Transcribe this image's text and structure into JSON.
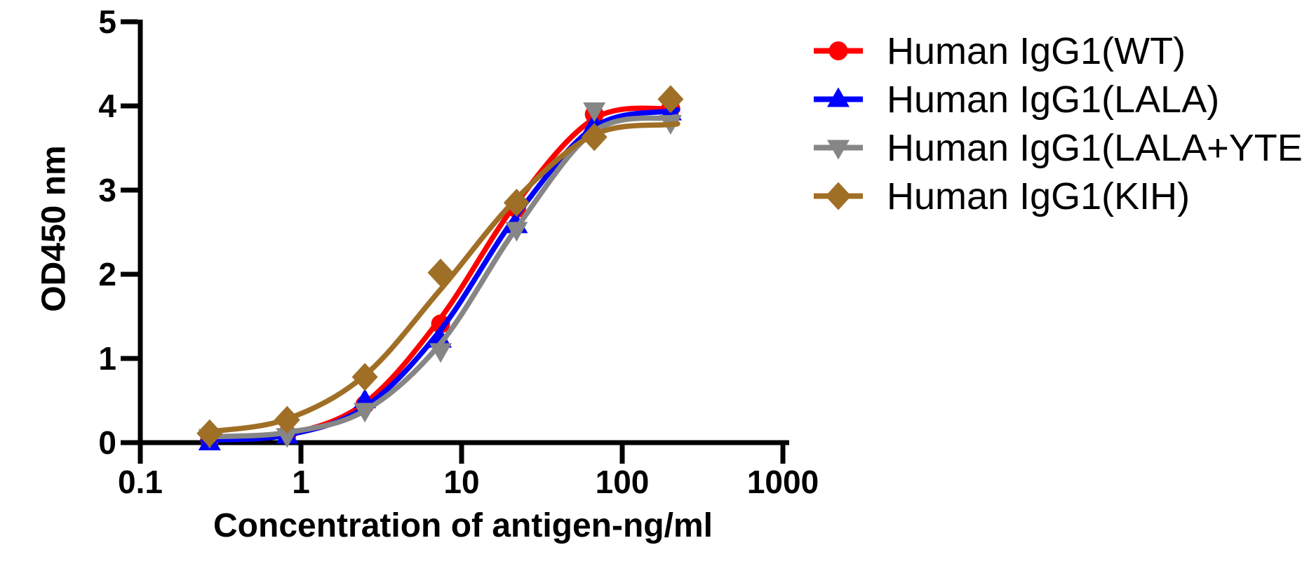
{
  "chart_data": {
    "type": "line",
    "subtype": "dose-response-elisa",
    "title": "",
    "xlabel": "Concentration of antigen-ng/ml",
    "ylabel": "OD450 nm",
    "x_scale": "log10",
    "xlim": [
      0.1,
      1000
    ],
    "ylim": [
      0,
      5
    ],
    "x_ticks": [
      "0.1",
      "1",
      "10",
      "100",
      "1000"
    ],
    "x_tick_values": [
      0.1,
      1,
      10,
      100,
      1000
    ],
    "y_ticks": [
      "0",
      "1",
      "2",
      "3",
      "4",
      "5"
    ],
    "y_tick_values": [
      0,
      1,
      2,
      3,
      4,
      5
    ],
    "grid": false,
    "legend_position": "right-outside",
    "axis_color": "#000000",
    "concentrations_ng_ml": [
      0.27,
      0.82,
      2.5,
      7.4,
      22,
      67,
      200
    ],
    "series": [
      {
        "name": "Human IgG1(WT)",
        "color": "#FF0000",
        "marker": "circle",
        "values": [
          0.04,
          0.1,
          0.45,
          1.41,
          2.78,
          3.9,
          3.97
        ],
        "fit_curve_od": [
          0.05,
          0.1,
          0.47,
          1.48,
          2.85,
          3.85,
          3.97
        ]
      },
      {
        "name": "Human IgG1(LALA)",
        "color": "#0000FF",
        "marker": "triangle-up",
        "values": [
          0.0,
          0.08,
          0.5,
          1.22,
          2.58,
          3.78,
          3.92
        ],
        "fit_curve_od": [
          0.03,
          0.09,
          0.42,
          1.34,
          2.7,
          3.75,
          3.94
        ]
      },
      {
        "name": "Human IgG1(LALA+YTE)",
        "color": "#868686",
        "marker": "triangle-down",
        "values": [
          0.07,
          0.08,
          0.38,
          1.09,
          2.53,
          3.95,
          3.8
        ],
        "fit_curve_od": [
          0.07,
          0.12,
          0.38,
          1.18,
          2.55,
          3.7,
          3.86
        ]
      },
      {
        "name": "Human IgG1(KIH)",
        "color": "#A06F26",
        "marker": "diamond",
        "values": [
          0.11,
          0.27,
          0.78,
          2.02,
          2.85,
          3.63,
          4.08
        ],
        "fit_curve_od": [
          0.13,
          0.28,
          0.8,
          1.82,
          2.9,
          3.66,
          3.78
        ]
      }
    ]
  },
  "legend": {
    "items": [
      {
        "label": "Human IgG1(WT)"
      },
      {
        "label": "Human IgG1(LALA)"
      },
      {
        "label": "Human IgG1(LALA+YTE)"
      },
      {
        "label": "Human IgG1(KIH)"
      }
    ]
  }
}
